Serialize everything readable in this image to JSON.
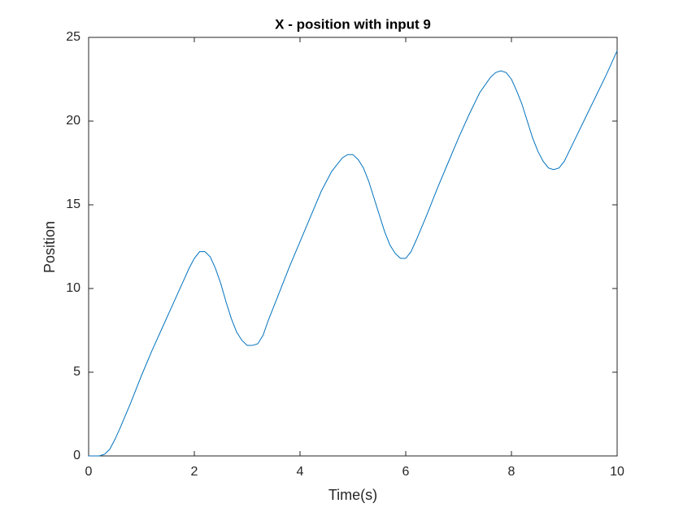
{
  "chart_data": {
    "type": "line",
    "title": "X - position with input 9",
    "x_label": "Time(s)",
    "y_label": "Position",
    "x": [
      0,
      0.2,
      0.3,
      0.4,
      0.5,
      0.6,
      0.8,
      1.0,
      1.2,
      1.4,
      1.6,
      1.8,
      1.9,
      2.0,
      2.1,
      2.2,
      2.3,
      2.4,
      2.5,
      2.6,
      2.7,
      2.8,
      2.9,
      3.0,
      3.1,
      3.2,
      3.3,
      3.4,
      3.6,
      3.8,
      4.0,
      4.2,
      4.4,
      4.6,
      4.8,
      4.9,
      5.0,
      5.1,
      5.2,
      5.3,
      5.4,
      5.5,
      5.6,
      5.7,
      5.8,
      5.9,
      6.0,
      6.1,
      6.2,
      6.4,
      6.6,
      6.8,
      7.0,
      7.2,
      7.4,
      7.6,
      7.7,
      7.8,
      7.9,
      8.0,
      8.1,
      8.2,
      8.3,
      8.4,
      8.5,
      8.6,
      8.7,
      8.8,
      8.9,
      9.0,
      9.2,
      9.4,
      9.6,
      9.8,
      10.0
    ],
    "series": [
      {
        "name": "X position",
        "color": "#0072bd",
        "values": [
          0,
          0,
          0.1,
          0.4,
          1.0,
          1.7,
          3.2,
          4.8,
          6.3,
          7.7,
          9.1,
          10.5,
          11.2,
          11.8,
          12.2,
          12.2,
          11.9,
          11.2,
          10.3,
          9.2,
          8.2,
          7.4,
          6.9,
          6.6,
          6.6,
          6.7,
          7.2,
          8.1,
          9.7,
          11.3,
          12.8,
          14.3,
          15.8,
          17.0,
          17.8,
          18.0,
          18.0,
          17.7,
          17.2,
          16.4,
          15.4,
          14.4,
          13.4,
          12.6,
          12.1,
          11.8,
          11.8,
          12.2,
          12.9,
          14.4,
          16.0,
          17.5,
          19.0,
          20.4,
          21.7,
          22.6,
          22.9,
          23.0,
          22.9,
          22.5,
          21.8,
          21.0,
          20.0,
          19.0,
          18.2,
          17.6,
          17.2,
          17.1,
          17.2,
          17.6,
          18.9,
          20.2,
          21.5,
          22.8,
          24.2
        ]
      }
    ],
    "xlim": [
      0,
      10
    ],
    "xticks": [
      0,
      2,
      4,
      6,
      8,
      10
    ],
    "ylim": [
      0,
      25
    ],
    "yticks": [
      0,
      5,
      10,
      15,
      20,
      25
    ],
    "grid": false
  }
}
